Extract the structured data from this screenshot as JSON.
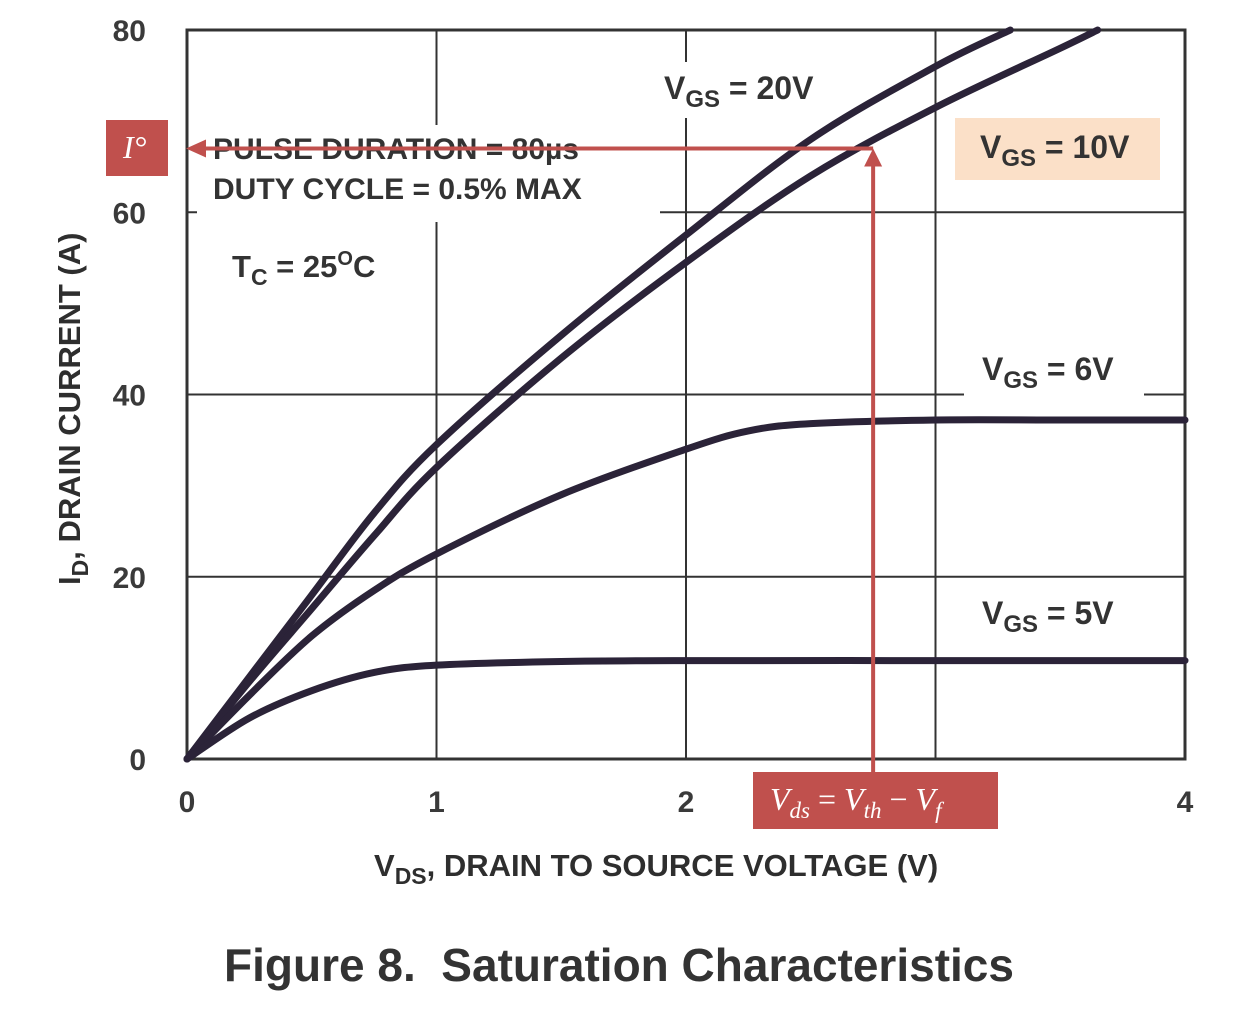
{
  "chart_data": {
    "type": "line",
    "title": "Figure 8.  Saturation Characteristics",
    "xlabel": {
      "main": "V",
      "sub": "DS",
      "rest": ", DRAIN TO SOURCE VOLTAGE (V)"
    },
    "ylabel": {
      "main": "I",
      "sub": "D",
      "rest": ", DRAIN CURRENT (A)"
    },
    "xlim": [
      0,
      4
    ],
    "ylim": [
      0,
      80
    ],
    "xticks": [
      0,
      1,
      2,
      3,
      4
    ],
    "xtick_labels": [
      "0",
      "1",
      "2",
      "",
      "4"
    ],
    "yticks": [
      0,
      20,
      40,
      60,
      80
    ],
    "ytick_labels": [
      "0",
      "20",
      "40",
      "60",
      "80"
    ],
    "grid": true,
    "series": [
      {
        "name": "VGS = 20V",
        "label_main": "V",
        "label_sub": "GS",
        "label_rest": " = 20V",
        "x": [
          0,
          0.25,
          0.5,
          0.75,
          1.0,
          1.5,
          2.0,
          2.5,
          3.0,
          3.3
        ],
        "y": [
          0,
          9,
          18,
          27,
          34.5,
          46.5,
          57.5,
          68,
          76,
          80
        ]
      },
      {
        "name": "VGS = 10V",
        "label_main": "V",
        "label_sub": "GS",
        "label_rest": " = 10V",
        "x": [
          0,
          0.25,
          0.5,
          0.75,
          1.0,
          1.5,
          2.0,
          2.5,
          3.0,
          3.5,
          3.65
        ],
        "y": [
          0,
          8.5,
          16.5,
          24.5,
          32,
          44,
          54.5,
          64,
          71.5,
          78,
          80
        ]
      },
      {
        "name": "VGS = 6V",
        "label_main": "V",
        "label_sub": "GS",
        "label_rest": " = 6V",
        "x": [
          0,
          0.25,
          0.5,
          0.75,
          1.0,
          1.5,
          2.0,
          2.25,
          2.5,
          3.0,
          3.5,
          4.0
        ],
        "y": [
          0,
          7,
          13.5,
          18.5,
          22.5,
          29,
          34,
          36,
          36.8,
          37.2,
          37.2,
          37.2
        ]
      },
      {
        "name": "VGS = 5V",
        "label_main": "V",
        "label_sub": "GS",
        "label_rest": " = 5V",
        "x": [
          0,
          0.25,
          0.5,
          0.75,
          1.0,
          1.5,
          2.0,
          3.0,
          4.0
        ],
        "y": [
          0,
          4.5,
          7.5,
          9.5,
          10.3,
          10.7,
          10.8,
          10.8,
          10.8
        ]
      }
    ],
    "annotations": {
      "pulse_duration": "PULSE DURATION = 80µs",
      "duty_cycle": "DUTY CYCLE = 0.5% MAX",
      "tc": {
        "main": "T",
        "sub": "C",
        "rest": " = 25",
        "sup": "O",
        "end": "C"
      }
    },
    "overlay": {
      "point": {
        "x": 2.75,
        "y": 67
      },
      "current_label": "I°",
      "vds_label": {
        "v1": "V",
        "s1": "ds",
        "eq": " = ",
        "v2": "V",
        "s2": "th",
        "minus": " − ",
        "v3": "V",
        "s3": "f"
      }
    },
    "colors": {
      "curve": "#2b2338",
      "grid": "#333333",
      "annotation_red": "#c0504d",
      "highlight_fill": "#fbe0c8"
    }
  }
}
